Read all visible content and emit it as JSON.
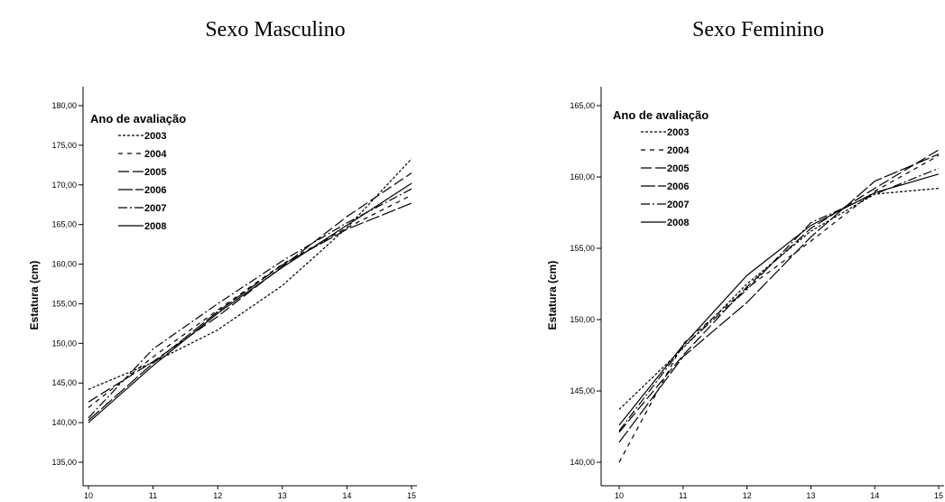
{
  "chart_data": [
    {
      "type": "line",
      "title": "Sexo Masculino",
      "xlabel": "",
      "ylabel": "Estatura (cm)",
      "x": [
        10,
        11,
        12,
        13,
        14,
        15
      ],
      "xlim": [
        10,
        15
      ],
      "ylim": [
        135,
        180
      ],
      "yticks": [
        "135,00",
        "140,00",
        "145,00",
        "150,00",
        "155,00",
        "160,00",
        "165,00",
        "170,00",
        "175,00",
        "180,00"
      ],
      "xticks": [
        "10",
        "11",
        "12",
        "13",
        "14",
        "15"
      ],
      "grid": false,
      "legend_title": "Ano de avaliação",
      "legend_position": "top-left",
      "series": [
        {
          "name": "2003",
          "dash": "3 2",
          "values": [
            144.2,
            147.6,
            151.7,
            157.3,
            164.6,
            173.3
          ]
        },
        {
          "name": "2004",
          "dash": "5 5",
          "values": [
            141.9,
            148.3,
            154.2,
            160.0,
            164.6,
            168.7
          ]
        },
        {
          "name": "2005",
          "dash": "12 4",
          "values": [
            142.6,
            147.7,
            153.4,
            159.7,
            166.0,
            171.5
          ]
        },
        {
          "name": "2006",
          "dash": "16 3",
          "values": [
            140.3,
            147.5,
            154.0,
            159.9,
            164.4,
            167.7
          ]
        },
        {
          "name": "2007",
          "dash": "10 3 2 3",
          "values": [
            140.6,
            149.3,
            155.0,
            160.4,
            165.2,
            169.5
          ]
        },
        {
          "name": "2008",
          "dash": "",
          "values": [
            140.0,
            147.2,
            153.8,
            159.6,
            164.9,
            170.2
          ]
        }
      ]
    },
    {
      "type": "line",
      "title": "Sexo Feminino",
      "xlabel": "",
      "ylabel": "Estatura (cm)",
      "x": [
        10,
        11,
        12,
        13,
        14,
        15
      ],
      "xlim": [
        10,
        15
      ],
      "ylim": [
        139.5,
        165.5
      ],
      "yticks": [
        "140,00",
        "145,00",
        "150,00",
        "155,00",
        "160,00",
        "165,00"
      ],
      "xticks": [
        "10",
        "11",
        "12",
        "13",
        "14",
        "15"
      ],
      "grid": false,
      "legend_title": "Ano de avaliação",
      "legend_position": "top-left",
      "series": [
        {
          "name": "2003",
          "dash": "3 2",
          "values": [
            143.7,
            148.0,
            152.5,
            156.2,
            158.8,
            159.2
          ]
        },
        {
          "name": "2004",
          "dash": "5 5",
          "values": [
            140.0,
            148.3,
            152.2,
            155.5,
            159.0,
            161.5
          ]
        },
        {
          "name": "2005",
          "dash": "12 4",
          "values": [
            142.1,
            147.5,
            152.3,
            156.4,
            159.2,
            161.9
          ]
        },
        {
          "name": "2006",
          "dash": "16 3",
          "values": [
            141.4,
            147.4,
            151.2,
            155.8,
            159.7,
            161.6
          ]
        },
        {
          "name": "2007",
          "dash": "10 3 2 3",
          "values": [
            142.2,
            148.1,
            152.1,
            156.8,
            158.8,
            160.6
          ]
        },
        {
          "name": "2008",
          "dash": "",
          "values": [
            142.6,
            148.2,
            153.1,
            156.6,
            158.9,
            160.2
          ]
        }
      ]
    }
  ]
}
